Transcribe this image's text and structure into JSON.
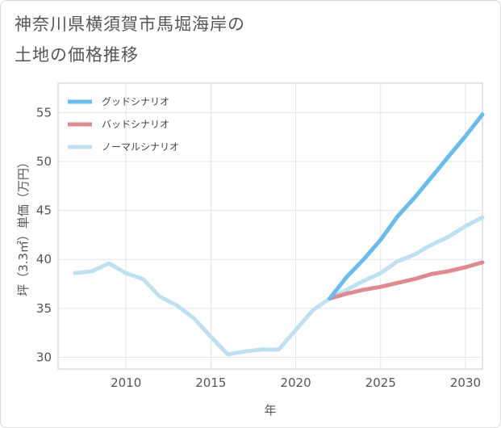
{
  "title_line1": "神奈川県横須賀市馬堀海岸の",
  "title_line2": "土地の価格推移",
  "chart_data": {
    "type": "line",
    "title": "神奈川県横須賀市馬堀海岸の土地の価格推移",
    "xlabel": "年",
    "ylabel": "坪（3.3㎡）単価（万円）",
    "xlim": [
      2006,
      2031
    ],
    "ylim": [
      28.8,
      58
    ],
    "xticks": [
      2010,
      2015,
      2020,
      2025,
      2030
    ],
    "yticks": [
      30,
      35,
      40,
      45,
      50,
      55
    ],
    "grid": true,
    "legend_position": "top-left",
    "series": [
      {
        "name": "グッドシナリオ",
        "color": "#6bbcec",
        "x": [
          2022,
          2023,
          2024,
          2025,
          2026,
          2027,
          2028,
          2029,
          2030,
          2031
        ],
        "y": [
          36.0,
          38.2,
          40.0,
          42.0,
          44.4,
          46.3,
          48.4,
          50.5,
          52.6,
          54.8
        ]
      },
      {
        "name": "バッドシナリオ",
        "color": "#de8a90",
        "x": [
          2022,
          2023,
          2024,
          2025,
          2026,
          2027,
          2028,
          2029,
          2030,
          2031
        ],
        "y": [
          36.0,
          36.5,
          36.9,
          37.2,
          37.6,
          38.0,
          38.5,
          38.8,
          39.2,
          39.7
        ]
      },
      {
        "name": "ノーマルシナリオ",
        "color": "#bfe0f0",
        "x": [
          2007,
          2008,
          2009,
          2010,
          2011,
          2012,
          2013,
          2014,
          2015,
          2016,
          2017,
          2018,
          2019,
          2020,
          2021,
          2022,
          2023,
          2024,
          2025,
          2026,
          2027,
          2028,
          2029,
          2030,
          2031
        ],
        "y": [
          38.6,
          38.8,
          39.6,
          38.6,
          38.0,
          36.2,
          35.3,
          34.0,
          32.1,
          30.3,
          30.6,
          30.8,
          30.8,
          32.8,
          34.8,
          36.0,
          36.9,
          37.8,
          38.6,
          39.8,
          40.5,
          41.5,
          42.3,
          43.4,
          44.3
        ]
      }
    ]
  }
}
